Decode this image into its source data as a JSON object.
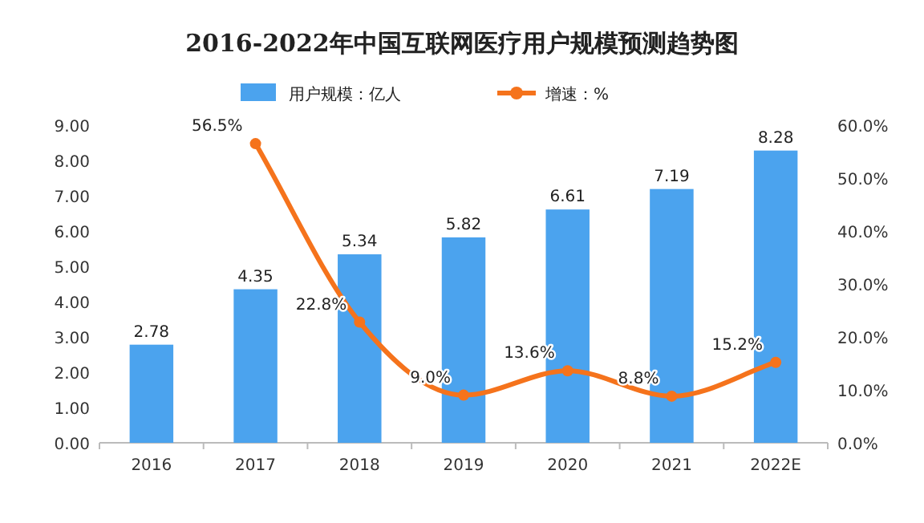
{
  "chart_data": {
    "type": "bar",
    "title": "2016-2022年中国互联网医疗用户规模预测趋势图",
    "categories": [
      "2016",
      "2017",
      "2018",
      "2019",
      "2020",
      "2021",
      "2022E"
    ],
    "series": [
      {
        "name": "用户规模：亿人",
        "color": "#4ba3ee",
        "values": [
          2.78,
          4.35,
          5.34,
          5.82,
          6.61,
          7.19,
          8.28
        ],
        "value_labels": [
          "2.78",
          "4.35",
          "5.34",
          "5.82",
          "6.61",
          "7.19",
          "8.28"
        ]
      },
      {
        "name": "增速：%",
        "type": "line",
        "axis": "y2",
        "color": "#f5731c",
        "values": [
          null,
          56.5,
          22.8,
          9.0,
          13.6,
          8.8,
          15.2
        ],
        "value_labels": [
          null,
          "56.5%",
          "22.8%",
          "9.0%",
          "13.6%",
          "8.8%",
          "15.2%"
        ]
      }
    ],
    "ylim": [
      0,
      9
    ],
    "yticks": [
      {
        "value": 0,
        "label": "0.00"
      },
      {
        "value": 1,
        "label": "1.00"
      },
      {
        "value": 2,
        "label": "2.00"
      },
      {
        "value": 3,
        "label": "3.00"
      },
      {
        "value": 4,
        "label": "4.00"
      },
      {
        "value": 5,
        "label": "5.00"
      },
      {
        "value": 6,
        "label": "6.00"
      },
      {
        "value": 7,
        "label": "7.00"
      },
      {
        "value": 8,
        "label": "8.00"
      },
      {
        "value": 9,
        "label": "9.00"
      }
    ],
    "y2lim": [
      0,
      60
    ],
    "y2ticks": [
      {
        "value": 0,
        "label": "0.0%"
      },
      {
        "value": 10,
        "label": "10.0%"
      },
      {
        "value": 20,
        "label": "20.0%"
      },
      {
        "value": 30,
        "label": "30.0%"
      },
      {
        "value": 40,
        "label": "40.0%"
      },
      {
        "value": 50,
        "label": "50.0%"
      },
      {
        "value": 60,
        "label": "60.0%"
      }
    ],
    "legend": "top",
    "marker": "circle"
  }
}
